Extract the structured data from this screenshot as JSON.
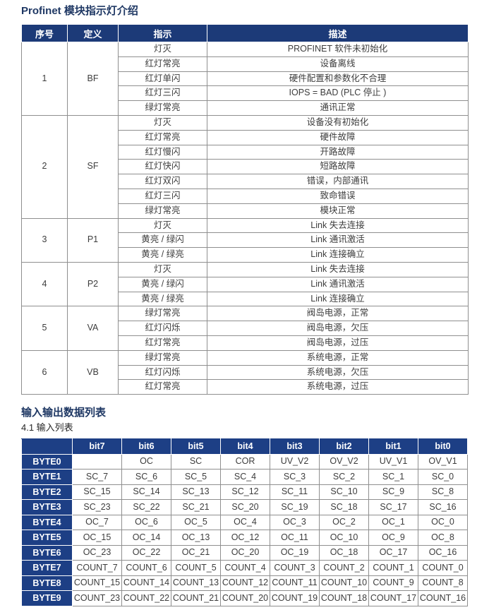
{
  "sections": {
    "led_title": "Profinet 模块指示灯介绍",
    "io_title": "输入输出数据列表",
    "input_list_title": "4.1 输入列表"
  },
  "colors": {
    "title_navy": "#1f3864",
    "led_header_bg": "#1c3a78",
    "io_header_bg": "#1d3f85",
    "grid_gray": "#8f8f8f",
    "body_text": "#3d3d3d"
  },
  "led_table": {
    "headers": [
      "序号",
      "定义",
      "指示",
      "描述"
    ],
    "groups": [
      {
        "no": "1",
        "def": "BF",
        "rows": [
          {
            "indication": "灯灭",
            "description": "PROFINET 软件未初始化"
          },
          {
            "indication": "红灯常亮",
            "description": "设备离线"
          },
          {
            "indication": "红灯单闪",
            "description": "硬件配置和参数化不合理"
          },
          {
            "indication": "红灯三闪",
            "description": "IOPS = BAD (PLC 停止 )"
          },
          {
            "indication": "绿灯常亮",
            "description": "通讯正常"
          }
        ]
      },
      {
        "no": "2",
        "def": "SF",
        "rows": [
          {
            "indication": "灯灭",
            "description": "设备没有初始化"
          },
          {
            "indication": "红灯常亮",
            "description": "硬件故障"
          },
          {
            "indication": "红灯慢闪",
            "description": "开路故障"
          },
          {
            "indication": "红灯快闪",
            "description": "短路故障"
          },
          {
            "indication": "红灯双闪",
            "description": "错误，内部通讯"
          },
          {
            "indication": "红灯三闪",
            "description": "致命错误"
          },
          {
            "indication": "绿灯常亮",
            "description": "模块正常"
          }
        ]
      },
      {
        "no": "3",
        "def": "P1",
        "rows": [
          {
            "indication": "灯灭",
            "description": "Link 失去连接"
          },
          {
            "indication": "黄亮 / 绿闪",
            "description": "Link 通讯激活"
          },
          {
            "indication": "黄亮 / 绿亮",
            "description": "Link 连接确立"
          }
        ]
      },
      {
        "no": "4",
        "def": "P2",
        "rows": [
          {
            "indication": "灯灭",
            "description": "Link 失去连接"
          },
          {
            "indication": "黄亮 / 绿闪",
            "description": "Link 通讯激活"
          },
          {
            "indication": "黄亮 / 绿亮",
            "description": "Link 连接确立"
          }
        ]
      },
      {
        "no": "5",
        "def": "VA",
        "rows": [
          {
            "indication": "绿灯常亮",
            "description": "阀岛电源，正常"
          },
          {
            "indication": "红灯闪烁",
            "description": "阀岛电源，欠压"
          },
          {
            "indication": "红灯常亮",
            "description": "阀岛电源，过压"
          }
        ]
      },
      {
        "no": "6",
        "def": "VB",
        "rows": [
          {
            "indication": "绿灯常亮",
            "description": "系统电源，正常"
          },
          {
            "indication": "红灯闪烁",
            "description": "系统电源，欠压"
          },
          {
            "indication": "红灯常亮",
            "description": "系统电源，过压"
          }
        ]
      }
    ]
  },
  "io_table": {
    "corner_label": "",
    "bit_headers": [
      "bit7",
      "bit6",
      "bit5",
      "bit4",
      "bit3",
      "bit2",
      "bit1",
      "bit0"
    ],
    "rows": [
      {
        "label": "BYTE0",
        "cells": [
          "",
          "OC",
          "SC",
          "COR",
          "UV_V2",
          "OV_V2",
          "UV_V1",
          "OV_V1"
        ]
      },
      {
        "label": "BYTE1",
        "cells": [
          "SC_7",
          "SC_6",
          "SC_5",
          "SC_4",
          "SC_3",
          "SC_2",
          "SC_1",
          "SC_0"
        ]
      },
      {
        "label": "BYTE2",
        "cells": [
          "SC_15",
          "SC_14",
          "SC_13",
          "SC_12",
          "SC_11",
          "SC_10",
          "SC_9",
          "SC_8"
        ]
      },
      {
        "label": "BYTE3",
        "cells": [
          "SC_23",
          "SC_22",
          "SC_21",
          "SC_20",
          "SC_19",
          "SC_18",
          "SC_17",
          "SC_16"
        ]
      },
      {
        "label": "BYTE4",
        "cells": [
          "OC_7",
          "OC_6",
          "OC_5",
          "OC_4",
          "OC_3",
          "OC_2",
          "OC_1",
          "OC_0"
        ]
      },
      {
        "label": "BYTE5",
        "cells": [
          "OC_15",
          "OC_14",
          "OC_13",
          "OC_12",
          "OC_11",
          "OC_10",
          "OC_9",
          "OC_8"
        ]
      },
      {
        "label": "BYTE6",
        "cells": [
          "OC_23",
          "OC_22",
          "OC_21",
          "OC_20",
          "OC_19",
          "OC_18",
          "OC_17",
          "OC_16"
        ]
      },
      {
        "label": "BYTE7",
        "cells": [
          "COUNT_7",
          "COUNT_6",
          "COUNT_5",
          "COUNT_4",
          "COUNT_3",
          "COUNT_2",
          "COUNT_1",
          "COUNT_0"
        ]
      },
      {
        "label": "BYTE8",
        "cells": [
          "COUNT_15",
          "COUNT_14",
          "COUNT_13",
          "COUNT_12",
          "COUNT_11",
          "COUNT_10",
          "COUNT_9",
          "COUNT_8"
        ]
      },
      {
        "label": "BYTE9",
        "cells": [
          "COUNT_23",
          "COUNT_22",
          "COUNT_21",
          "COUNT_20",
          "COUNT_19",
          "COUNT_18",
          "COUNT_17",
          "COUNT_16"
        ]
      }
    ]
  }
}
